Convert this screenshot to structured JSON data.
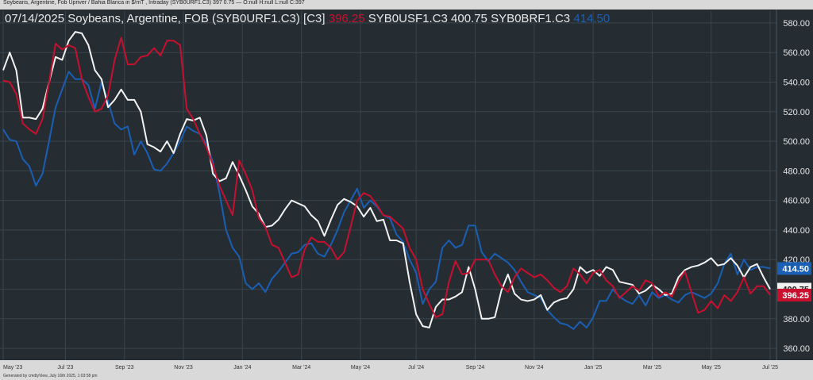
{
  "header": {
    "top_note": "Soybeans, Argentine, Fob Upriver / Bahia Blanca in $/mT , Intraday (SYB0URF1.C3) 397 0.75 — O:null H:null L:null C:397",
    "footer_note": "Generated by cmdtyView, July 16th 2025, 1:03:58 pm"
  },
  "legend": {
    "date_title": "07/14/2025 Soybeans, Argentine, FOB (SYB0URF1.C3) [C3]",
    "s1_value": "396.25",
    "s2_label": "SYB0USF1.C3",
    "s2_value": "400.75",
    "s3_label": "SYB0BRF1.C3",
    "s3_value": "414.50"
  },
  "colors": {
    "background": "#252d33",
    "frame": "#d9d9d9",
    "grid": "#3a444c",
    "red": "#c8102e",
    "white": "#f2f2f2",
    "blue": "#1a5fb4"
  },
  "chart_data": {
    "type": "line",
    "ylim": [
      352,
      588
    ],
    "yticks": [
      360,
      380,
      400,
      420,
      440,
      460,
      480,
      500,
      520,
      540,
      560,
      580
    ],
    "ytick_labels": [
      "360.00",
      "380.00",
      "400.00",
      "420.00",
      "440.00",
      "460.00",
      "480.00",
      "500.00",
      "520.00",
      "540.00",
      "560.00",
      "580.00"
    ],
    "x_labels": [
      {
        "x": 0,
        "label": "May '23"
      },
      {
        "x": 9.5,
        "label": "Jul '23"
      },
      {
        "x": 18.5,
        "label": "Sep '23"
      },
      {
        "x": 27.5,
        "label": "Nov '23"
      },
      {
        "x": 36.5,
        "label": "Jan '24"
      },
      {
        "x": 45.5,
        "label": "Mar '24"
      },
      {
        "x": 54.5,
        "label": "May '24"
      },
      {
        "x": 63,
        "label": "Jul '24"
      },
      {
        "x": 72,
        "label": "Sep '24"
      },
      {
        "x": 81,
        "label": "Nov '24"
      },
      {
        "x": 90,
        "label": "Jan '25"
      },
      {
        "x": 99,
        "label": "Mar '25"
      },
      {
        "x": 108,
        "label": "May '25"
      },
      {
        "x": 117,
        "label": "Jul '25"
      }
    ],
    "xlim": [
      0,
      117.6
    ],
    "series": [
      {
        "name": "SYB0URF1.C3",
        "color": "#c8102e",
        "last_label": "396.25",
        "values": [
          541,
          540,
          532,
          512,
          508,
          505,
          515,
          540,
          566,
          562,
          565,
          563,
          542,
          530,
          520,
          522,
          531,
          555,
          570,
          552,
          552,
          557,
          558,
          563,
          558,
          568,
          568,
          565,
          522,
          515,
          505,
          496,
          484,
          470,
          460,
          450,
          487,
          478,
          467,
          448,
          442,
          430,
          428,
          418,
          408,
          410,
          427,
          435,
          432,
          432,
          428,
          420,
          425,
          442,
          460,
          465,
          463,
          457,
          450,
          449,
          445,
          441,
          428,
          420,
          400,
          390,
          381,
          383,
          405,
          419,
          410,
          411,
          420,
          420,
          420,
          410,
          402,
          398,
          408,
          414,
          411,
          408,
          410,
          406,
          401,
          398,
          402,
          414,
          410,
          404,
          411,
          413,
          406,
          402,
          394,
          398,
          402,
          399,
          406,
          404,
          395,
          398,
          395,
          405,
          412,
          398,
          384,
          386,
          392,
          387,
          396,
          392,
          398,
          408,
          397,
          402,
          402,
          396
        ]
      },
      {
        "name": "SYB0USF1.C3",
        "color": "#f2f2f2",
        "last_label": "400.75",
        "values": [
          548,
          560,
          548,
          516,
          516,
          515,
          522,
          540,
          557,
          555,
          568,
          574,
          573,
          565,
          548,
          542,
          523,
          528,
          535,
          528,
          528,
          520,
          498,
          496,
          493,
          500,
          492,
          505,
          515,
          514,
          516,
          504,
          478,
          473,
          475,
          486,
          477,
          467,
          456,
          451,
          442,
          443,
          447,
          454,
          460,
          458,
          456,
          450,
          446,
          436,
          447,
          457,
          461,
          459,
          456,
          449,
          455,
          446,
          447,
          433,
          433,
          431,
          405,
          383,
          375,
          374,
          388,
          393,
          393,
          395,
          398,
          415,
          400,
          380,
          380,
          381,
          399,
          410,
          397,
          393,
          392,
          393,
          396,
          386,
          391,
          393,
          394,
          400,
          415,
          411,
          413,
          409,
          415,
          413,
          405,
          404,
          403,
          397,
          399,
          403,
          400,
          396,
          397,
          408,
          413,
          415,
          416,
          418,
          421,
          416,
          417,
          421,
          416,
          408,
          415,
          417,
          408,
          400
        ]
      },
      {
        "name": "SYB0BRF1.C3",
        "color": "#1a5fb4",
        "last_label": "414.50",
        "values": [
          508,
          501,
          500,
          488,
          483,
          470,
          478,
          500,
          523,
          535,
          547,
          542,
          542,
          538,
          522,
          540,
          527,
          512,
          508,
          510,
          491,
          500,
          492,
          481,
          480,
          485,
          492,
          500,
          510,
          507,
          505,
          498,
          486,
          465,
          440,
          428,
          422,
          404,
          400,
          404,
          398,
          407,
          412,
          418,
          424,
          425,
          430,
          431,
          424,
          422,
          430,
          440,
          452,
          460,
          468,
          455,
          460,
          456,
          450,
          448,
          437,
          432,
          420,
          411,
          390,
          400,
          405,
          428,
          433,
          428,
          430,
          443,
          443,
          425,
          419,
          424,
          421,
          418,
          413,
          405,
          398,
          396,
          394,
          386,
          381,
          377,
          376,
          373,
          378,
          374,
          381,
          392,
          392,
          400,
          395,
          392,
          390,
          396,
          389,
          398,
          394,
          396,
          393,
          391,
          396,
          398,
          396,
          394,
          397,
          404,
          417,
          424,
          410,
          420,
          413,
          415,
          415,
          414
        ]
      }
    ]
  }
}
